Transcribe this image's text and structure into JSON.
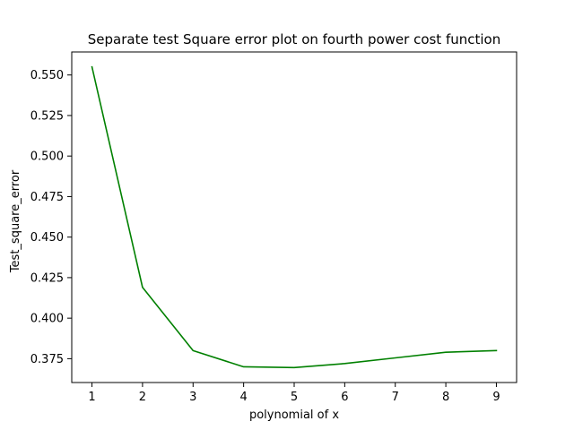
{
  "chart_data": {
    "type": "line",
    "title": "Separate test Square error plot on fourth power cost function",
    "xlabel": "polynomial of x",
    "ylabel": "Test_square_error",
    "x": [
      1,
      2,
      3,
      4,
      5,
      6,
      7,
      8,
      9
    ],
    "series": [
      {
        "values": [
          0.555,
          0.419,
          0.38,
          0.37,
          0.3695,
          0.372,
          0.3755,
          0.379,
          0.38
        ],
        "color": "#008000"
      }
    ],
    "xticks": [
      "1",
      "2",
      "3",
      "4",
      "5",
      "6",
      "7",
      "8",
      "9"
    ],
    "yticks": [
      "0.375",
      "0.400",
      "0.425",
      "0.450",
      "0.475",
      "0.500",
      "0.525",
      "0.550"
    ],
    "xlim": [
      0.6,
      9.4
    ],
    "ylim": [
      0.3603,
      0.5642
    ],
    "grid": false,
    "legend": false
  }
}
